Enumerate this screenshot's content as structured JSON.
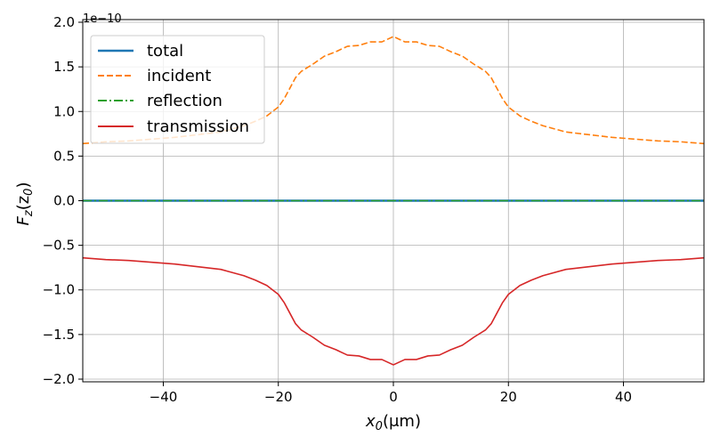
{
  "chart_data": {
    "type": "line",
    "xlabel": "x",
    "xlabel_sub": "0",
    "xlabel_unit": "(μm)",
    "ylabel": "F",
    "ylabel_sub": "z",
    "ylabel_arg": "(z",
    "ylabel_arg_sub": "0",
    "ylabel_close": ")",
    "y_offset_label": "1e−10",
    "xlim": [
      -54,
      54
    ],
    "ylim": [
      -2.03,
      2.03
    ],
    "xticks": [
      -40,
      -20,
      0,
      20,
      40
    ],
    "xtick_labels": [
      "−40",
      "−20",
      "0",
      "20",
      "40"
    ],
    "yticks": [
      -2.0,
      -1.5,
      -1.0,
      -0.5,
      0.0,
      0.5,
      1.0,
      1.5,
      2.0
    ],
    "ytick_labels": [
      "−2.0",
      "−1.5",
      "−1.0",
      "−0.5",
      "0.0",
      "0.5",
      "1.0",
      "1.5",
      "2.0"
    ],
    "grid": true,
    "legend_position": "upper-left",
    "x": [
      -54,
      -50,
      -46,
      -42,
      -38,
      -34,
      -30,
      -26,
      -24,
      -22,
      -20,
      -19,
      -18,
      -17,
      -16,
      -14,
      -12,
      -10,
      -8,
      -6,
      -4,
      -2,
      0,
      2,
      4,
      6,
      8,
      10,
      12,
      14,
      16,
      17,
      18,
      19,
      20,
      22,
      24,
      26,
      30,
      34,
      38,
      42,
      46,
      50,
      54
    ],
    "series": [
      {
        "name": "total",
        "color": "#1f77b4",
        "style": "solid",
        "values": [
          0.0,
          0.0,
          0.0,
          0.0,
          0.0,
          0.0,
          0.0,
          0.0,
          0.0,
          0.0,
          0.0,
          0.0,
          0.0,
          0.0,
          0.0,
          0.0,
          0.0,
          0.0,
          0.0,
          0.0,
          0.0,
          0.0,
          0.0,
          0.0,
          0.0,
          0.0,
          0.0,
          0.0,
          0.0,
          0.0,
          0.0,
          0.0,
          0.0,
          0.0,
          0.0,
          0.0,
          0.0,
          0.0,
          0.0,
          0.0,
          0.0,
          0.0,
          0.0,
          0.0,
          0.0
        ]
      },
      {
        "name": "incident",
        "color": "#ff7f0e",
        "style": "dashed",
        "values": [
          0.64,
          0.66,
          0.67,
          0.69,
          0.71,
          0.74,
          0.77,
          0.84,
          0.89,
          0.95,
          1.05,
          1.14,
          1.26,
          1.38,
          1.45,
          1.53,
          1.62,
          1.67,
          1.73,
          1.74,
          1.78,
          1.78,
          1.84,
          1.78,
          1.78,
          1.74,
          1.73,
          1.67,
          1.62,
          1.53,
          1.45,
          1.38,
          1.26,
          1.14,
          1.05,
          0.95,
          0.89,
          0.84,
          0.77,
          0.74,
          0.71,
          0.69,
          0.67,
          0.66,
          0.64
        ]
      },
      {
        "name": "reflection",
        "color": "#2ca02c",
        "style": "dashdot",
        "values": [
          0.0,
          0.0,
          0.0,
          0.0,
          0.0,
          0.0,
          0.0,
          0.0,
          0.0,
          0.0,
          0.0,
          0.0,
          0.0,
          0.0,
          0.0,
          0.0,
          0.0,
          0.0,
          0.0,
          0.0,
          0.0,
          0.0,
          0.0,
          0.0,
          0.0,
          0.0,
          0.0,
          0.0,
          0.0,
          0.0,
          0.0,
          0.0,
          0.0,
          0.0,
          0.0,
          0.0,
          0.0,
          0.0,
          0.0,
          0.0,
          0.0,
          0.0,
          0.0,
          0.0,
          0.0
        ]
      },
      {
        "name": "transmission",
        "color": "#d62728",
        "style": "solid",
        "values": [
          -0.64,
          -0.66,
          -0.67,
          -0.69,
          -0.71,
          -0.74,
          -0.77,
          -0.84,
          -0.89,
          -0.95,
          -1.05,
          -1.14,
          -1.26,
          -1.38,
          -1.45,
          -1.53,
          -1.62,
          -1.67,
          -1.73,
          -1.74,
          -1.78,
          -1.78,
          -1.84,
          -1.78,
          -1.78,
          -1.74,
          -1.73,
          -1.67,
          -1.62,
          -1.53,
          -1.45,
          -1.38,
          -1.26,
          -1.14,
          -1.05,
          -0.95,
          -0.89,
          -0.84,
          -0.77,
          -0.74,
          -0.71,
          -0.69,
          -0.67,
          -0.66,
          -0.64
        ]
      }
    ]
  }
}
